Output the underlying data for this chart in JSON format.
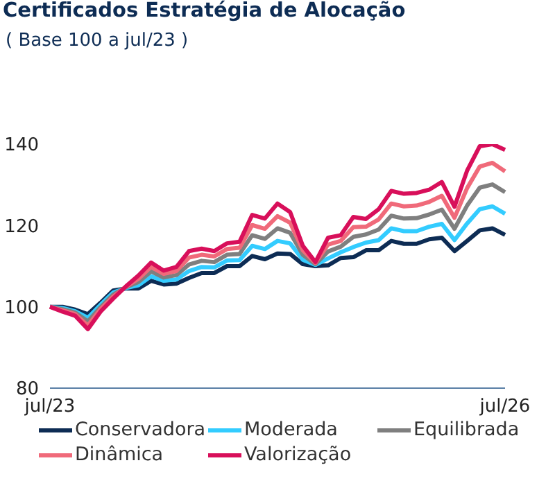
{
  "chart_data": {
    "type": "line",
    "title": "Certificados Estratégia de Alocação",
    "subtitle": "( Base 100 a jul/23 )",
    "categories": [
      "jul/23",
      null,
      null,
      null,
      null,
      null,
      null,
      null,
      null,
      null,
      null,
      null,
      null,
      null,
      null,
      null,
      null,
      null,
      null,
      null,
      null,
      null,
      null,
      null,
      null,
      null,
      null,
      null,
      null,
      null,
      null,
      null,
      null,
      null,
      null,
      null,
      "jul/26"
    ],
    "series": [
      {
        "name": "Conservadora",
        "color": "#0d2c54",
        "values": [
          100,
          100,
          99.3,
          98.2,
          101,
          104,
          104.5,
          104.5,
          106.4,
          105.5,
          105.7,
          107.1,
          108.3,
          108.3,
          110,
          110,
          112.5,
          111.7,
          113.1,
          113,
          110.5,
          110,
          110.2,
          112,
          112.2,
          113.9,
          113.9,
          116.2,
          115.5,
          115.5,
          116.6,
          117,
          113.7,
          116.2,
          118.8,
          119.3,
          117.7
        ]
      },
      {
        "name": "Moderada",
        "color": "#33ccff",
        "values": [
          100,
          99.7,
          98.9,
          97.3,
          100.5,
          103.5,
          104.6,
          105.3,
          107.5,
          106.4,
          106.7,
          108.8,
          109.8,
          109.7,
          111.4,
          111.5,
          115,
          114.2,
          116.2,
          115.6,
          111.6,
          110.3,
          111.9,
          113.4,
          114.7,
          115.8,
          116.4,
          119.3,
          118.6,
          118.6,
          119.7,
          120.4,
          116.4,
          120.5,
          124,
          124.7,
          122.9
        ]
      },
      {
        "name": "Equilibrada",
        "color": "#7f7f7f",
        "values": [
          100,
          99.4,
          98.6,
          96.4,
          99.9,
          103,
          104.8,
          106.1,
          108.7,
          107.2,
          107.8,
          110.4,
          111.3,
          111,
          112.8,
          113,
          117.6,
          116.7,
          119.3,
          118.2,
          112.8,
          110.5,
          113.6,
          114.8,
          117.2,
          117.8,
          119,
          122.4,
          121.7,
          121.8,
          122.7,
          123.9,
          119.2,
          124.9,
          129.3,
          130.1,
          128.2
        ]
      },
      {
        "name": "Dinâmica",
        "color": "#f06a7a",
        "values": [
          100,
          99.1,
          98.2,
          95.4,
          99.4,
          102.5,
          104.9,
          106.9,
          109.8,
          108.1,
          108.8,
          112.1,
          112.8,
          112.4,
          114.2,
          114.5,
          120.1,
          119.2,
          122.3,
          120.7,
          113.9,
          110.8,
          115.3,
          116.2,
          119.6,
          119.7,
          121.5,
          125.4,
          124.7,
          124.9,
          125.8,
          127.3,
          121.9,
          129.2,
          134.5,
          135.4,
          133.3
        ]
      },
      {
        "name": "Valorização",
        "color": "#d80f5a",
        "values": [
          100,
          98.8,
          97.8,
          94.5,
          98.8,
          102,
          105,
          107.7,
          110.9,
          108.9,
          109.8,
          113.7,
          114.3,
          113.7,
          115.6,
          116,
          122.6,
          121.7,
          125.4,
          123.3,
          115,
          111,
          117,
          117.6,
          122.1,
          121.6,
          124,
          128.5,
          127.8,
          128,
          128.8,
          130.7,
          124.6,
          133.5,
          139.5,
          140,
          138.6
        ]
      }
    ],
    "ylim": [
      80,
      140
    ],
    "yticks": [
      80,
      100,
      120,
      140
    ],
    "grid": false,
    "legend": "bottom",
    "marker": "none",
    "line_style": "solid"
  }
}
